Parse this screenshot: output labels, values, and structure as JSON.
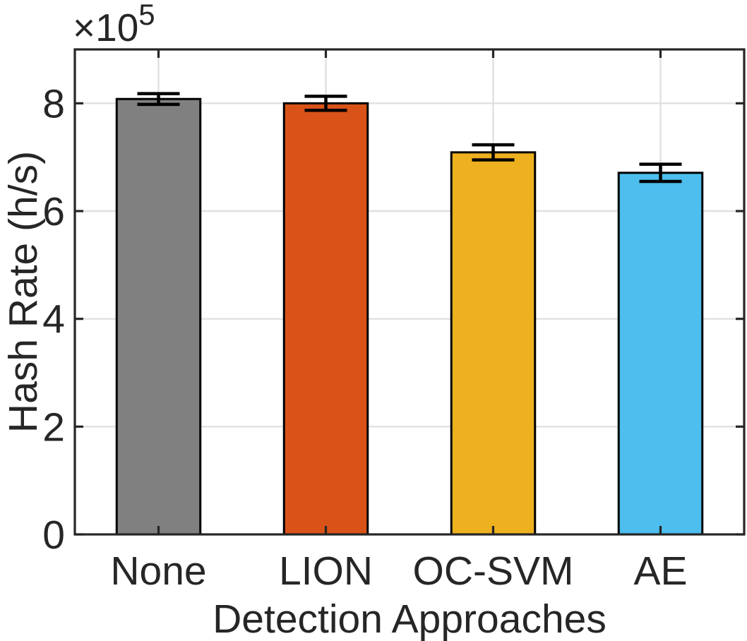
{
  "figure": {
    "background": "#FFFFFF",
    "axis_color": "#262626",
    "grid_color": "#E0E0E0",
    "bar_edge_color": "#000000",
    "errorbar_color": "#000000"
  },
  "chart_data": {
    "type": "bar",
    "title": "",
    "categories": [
      "None",
      "LION",
      "OC-SVM",
      "AE"
    ],
    "values": [
      808000,
      800000,
      709000,
      671000
    ],
    "errors": [
      10000,
      13000,
      14000,
      16000
    ],
    "bar_colors": [
      "#808080",
      "#D95319",
      "#EDB120",
      "#4DBEEE"
    ],
    "xlabel": "Detection Approaches",
    "ylabel": "Hash Rate (h/s)",
    "ylim": [
      0,
      900000
    ],
    "yticks": [
      0,
      200000,
      400000,
      600000,
      800000
    ],
    "ytick_labels": [
      "0",
      "2",
      "4",
      "6",
      "8"
    ],
    "y_axis_offset": {
      "base": "×10",
      "exponent": "5",
      "display": "×10⁵"
    },
    "bar_width_fraction": 0.5,
    "grid": true,
    "error_bars": true,
    "legend": "none"
  }
}
